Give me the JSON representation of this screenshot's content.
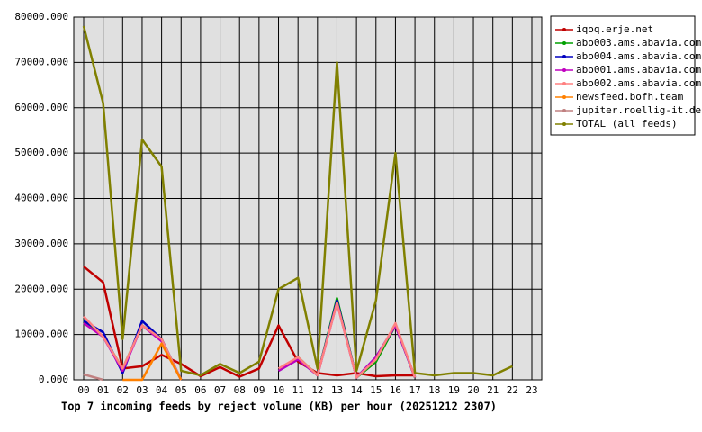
{
  "chart_data": {
    "type": "line",
    "title": "Top 7 incoming feeds by reject volume (KB) per hour (20251212 2307)",
    "categories": [
      "00",
      "01",
      "02",
      "03",
      "04",
      "05",
      "06",
      "07",
      "08",
      "09",
      "10",
      "11",
      "12",
      "13",
      "14",
      "15",
      "16",
      "17",
      "18",
      "19",
      "20",
      "21",
      "22",
      "23"
    ],
    "series": [
      {
        "name": "iqoq.erje.net",
        "color": "#c00000",
        "values": [
          25000,
          21500,
          2500,
          3000,
          5500,
          3500,
          800,
          2800,
          700,
          2500,
          12000,
          4000,
          1500,
          1000,
          1500,
          800,
          1000,
          1000,
          null,
          null,
          null,
          null,
          null,
          null
        ]
      },
      {
        "name": "abo003.ams.abavia.com",
        "color": "#00a000",
        "values": [
          13000,
          9500,
          2500,
          12000,
          9000,
          0,
          null,
          null,
          null,
          null,
          2000,
          5000,
          1000,
          18000,
          500,
          4000,
          12000,
          500,
          null,
          null,
          null,
          null,
          null,
          null
        ]
      },
      {
        "name": "abo004.ams.abavia.com",
        "color": "#0000c0",
        "values": [
          13000,
          10500,
          1500,
          13000,
          9000,
          0,
          null,
          null,
          null,
          null,
          2000,
          4500,
          1000,
          17500,
          500,
          5000,
          12000,
          500,
          null,
          null,
          null,
          null,
          null,
          null
        ]
      },
      {
        "name": "abo001.ams.abavia.com",
        "color": "#c000c0",
        "values": [
          12500,
          9500,
          2000,
          12000,
          8500,
          0,
          null,
          null,
          null,
          null,
          2000,
          4500,
          1000,
          17000,
          500,
          5000,
          12000,
          500,
          null,
          null,
          null,
          null,
          null,
          null
        ]
      },
      {
        "name": "abo002.ams.abavia.com",
        "color": "#ff8080",
        "values": [
          14000,
          9500,
          2500,
          12000,
          9000,
          0,
          null,
          null,
          null,
          null,
          2500,
          5000,
          1000,
          17000,
          500,
          4500,
          12500,
          500,
          null,
          null,
          null,
          null,
          null,
          null
        ]
      },
      {
        "name": "newsfeed.bofh.team",
        "color": "#ff8000",
        "values": [
          null,
          null,
          0,
          0,
          8000,
          0,
          null,
          null,
          null,
          null,
          null,
          null,
          null,
          null,
          null,
          null,
          null,
          null,
          null,
          null,
          null,
          null,
          null,
          null
        ]
      },
      {
        "name": "jupiter.roellig-it.de",
        "color": "#c08080",
        "values": [
          1200,
          0,
          null,
          null,
          null,
          null,
          null,
          null,
          null,
          null,
          null,
          null,
          null,
          null,
          null,
          null,
          null,
          null,
          null,
          null,
          null,
          null,
          null,
          null
        ]
      },
      {
        "name": "TOTAL (all feeds)",
        "color": "#808000",
        "values": [
          78000,
          61000,
          9000,
          53000,
          47000,
          2000,
          1000,
          3500,
          1500,
          4000,
          20000,
          22500,
          2500,
          70000,
          2000,
          17500,
          50000,
          1500,
          1000,
          1500,
          1500,
          1000,
          3000,
          null
        ]
      }
    ],
    "ylim": [
      0,
      80000
    ],
    "yticks": [
      {
        "value": 0,
        "label": "0.000"
      },
      {
        "value": 10000,
        "label": "10000.000"
      },
      {
        "value": 20000,
        "label": "20000.000"
      },
      {
        "value": 30000,
        "label": "30000.000"
      },
      {
        "value": 40000,
        "label": "40000.000"
      },
      {
        "value": 50000,
        "label": "50000.000"
      },
      {
        "value": 60000,
        "label": "60000.000"
      },
      {
        "value": 70000,
        "label": "70000.000"
      },
      {
        "value": 80000,
        "label": "80000.000"
      }
    ],
    "grid": true,
    "legend": "right"
  }
}
